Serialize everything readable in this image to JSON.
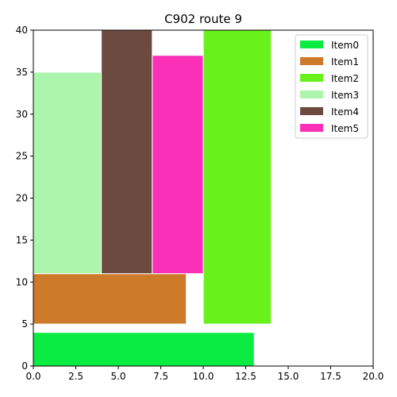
{
  "chart_data": {
    "type": "bar",
    "title": "C902 route 9",
    "xlabel": "",
    "ylabel": "",
    "xlim": [
      0,
      20
    ],
    "ylim": [
      0,
      40
    ],
    "xticks": [
      "0.0",
      "2.5",
      "5.0",
      "7.5",
      "10.0",
      "12.5",
      "15.0",
      "17.5",
      "20.0"
    ],
    "yticks": [
      "0",
      "5",
      "10",
      "15",
      "20",
      "25",
      "30",
      "35",
      "40"
    ],
    "grid": false,
    "legend_position": "top-right",
    "series": [
      {
        "name": "Item0",
        "color": "#0bec42",
        "x": 0,
        "y": 0,
        "width": 13,
        "height": 4
      },
      {
        "name": "Item1",
        "color": "#cd7a2a",
        "x": 0,
        "y": 5,
        "width": 9,
        "height": 6
      },
      {
        "name": "Item2",
        "color": "#68f11a",
        "x": 10,
        "y": 5,
        "width": 4,
        "height": 35
      },
      {
        "name": "Item3",
        "color": "#adf5ad",
        "x": 0,
        "y": 11,
        "width": 4,
        "height": 24
      },
      {
        "name": "Item4",
        "color": "#6d4a40",
        "x": 4,
        "y": 11,
        "width": 3,
        "height": 29
      },
      {
        "name": "Item5",
        "color": "#fb30b8",
        "x": 7,
        "y": 11,
        "width": 3,
        "height": 26
      }
    ]
  }
}
